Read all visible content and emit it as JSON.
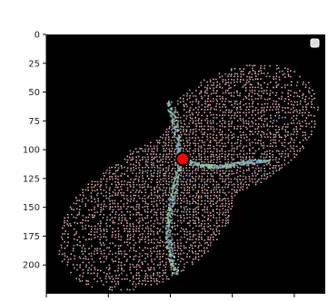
{
  "chart_data": {
    "type": "scatter",
    "title": "",
    "xlabel": "",
    "ylabel": "",
    "y_axis_inverted": true,
    "ylim": [
      0,
      225
    ],
    "xlim": [
      0,
      225
    ],
    "y_ticks": [
      0,
      25,
      50,
      75,
      100,
      125,
      150,
      175,
      200
    ],
    "x_ticks": [
      0,
      50,
      100,
      150,
      200
    ],
    "x_tick_labels_visible": false,
    "grid": false,
    "background_color": "#000000",
    "point_cloud_colors": [
      "#e8b4b0",
      "#d9a3a8",
      "#c99ab0",
      "#f0d0a8",
      "#9ab3c8",
      "#8fb8a0"
    ],
    "crease_colors": [
      "#6e8fc0",
      "#7fb0c8",
      "#8fc0a0",
      "#9ad08a"
    ],
    "marker": {
      "x": 110,
      "y": 108,
      "color": "#ff0000",
      "edgecolor": "#000000"
    },
    "legend": {
      "placement": "top-right",
      "entries": [
        ""
      ]
    }
  }
}
